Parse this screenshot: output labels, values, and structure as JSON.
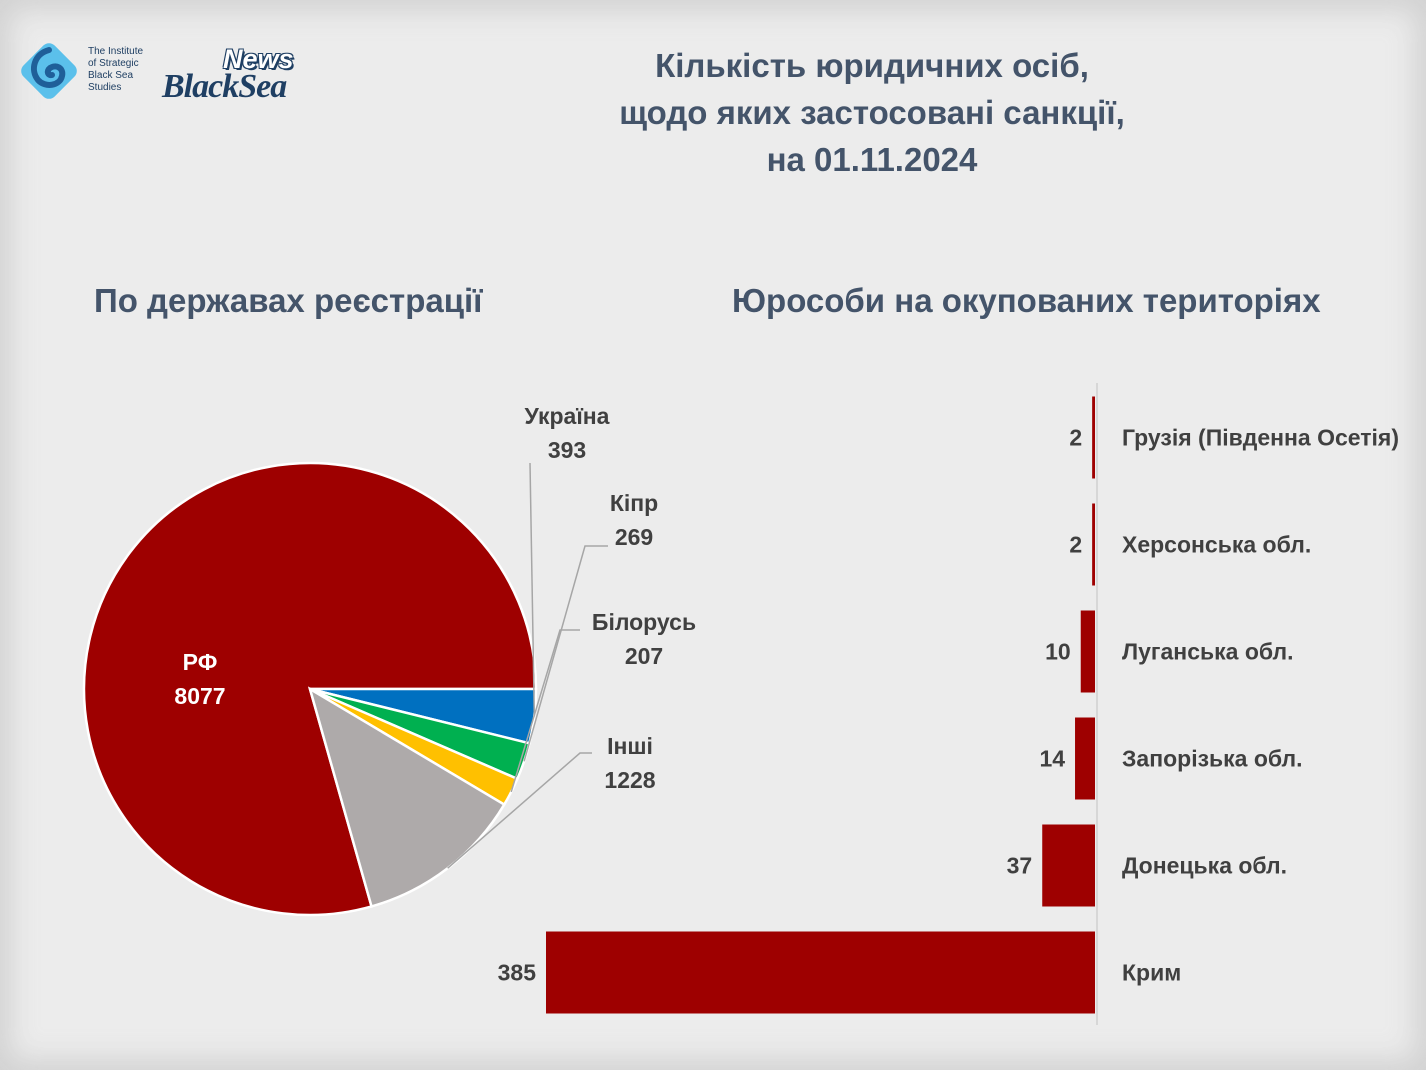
{
  "colors": {
    "background": "#ececec",
    "title": "#44546a",
    "label": "#404040",
    "russia": "#9e0000",
    "ukraine": "#0070c0",
    "cyprus": "#00b050",
    "belarus": "#ffc000",
    "others": "#aeaaaa",
    "bar": "#9e0000"
  },
  "logo": {
    "institute_lines": [
      "The Institute",
      "of Strategic",
      "Black Sea",
      "Studies"
    ],
    "news": "News",
    "blacksea": "BlackSea"
  },
  "title_lines": [
    "Кількість юридичних осіб,",
    "щодо яких застосовані санкції,",
    "на 01.11.2024"
  ],
  "chart_data": [
    {
      "type": "pie",
      "title": "По державах реєстрації",
      "categories": [
        "РФ",
        "Україна",
        "Кіпр",
        "Білорусь",
        "Інші"
      ],
      "values": [
        8077,
        393,
        269,
        207,
        1228
      ],
      "colors": [
        "#9e0000",
        "#0070c0",
        "#00b050",
        "#ffc000",
        "#aeaaaa"
      ]
    },
    {
      "type": "bar",
      "orientation": "horizontal",
      "title": "Юрособи на окупованих територіях",
      "categories": [
        "Грузія (Південна Осетія)",
        "Херсонська обл.",
        "Луганська обл.",
        "Запорізька обл.",
        "Донецька обл.",
        "Крим"
      ],
      "values": [
        2,
        2,
        10,
        14,
        37,
        385
      ],
      "xlim": [
        0,
        385
      ]
    }
  ]
}
